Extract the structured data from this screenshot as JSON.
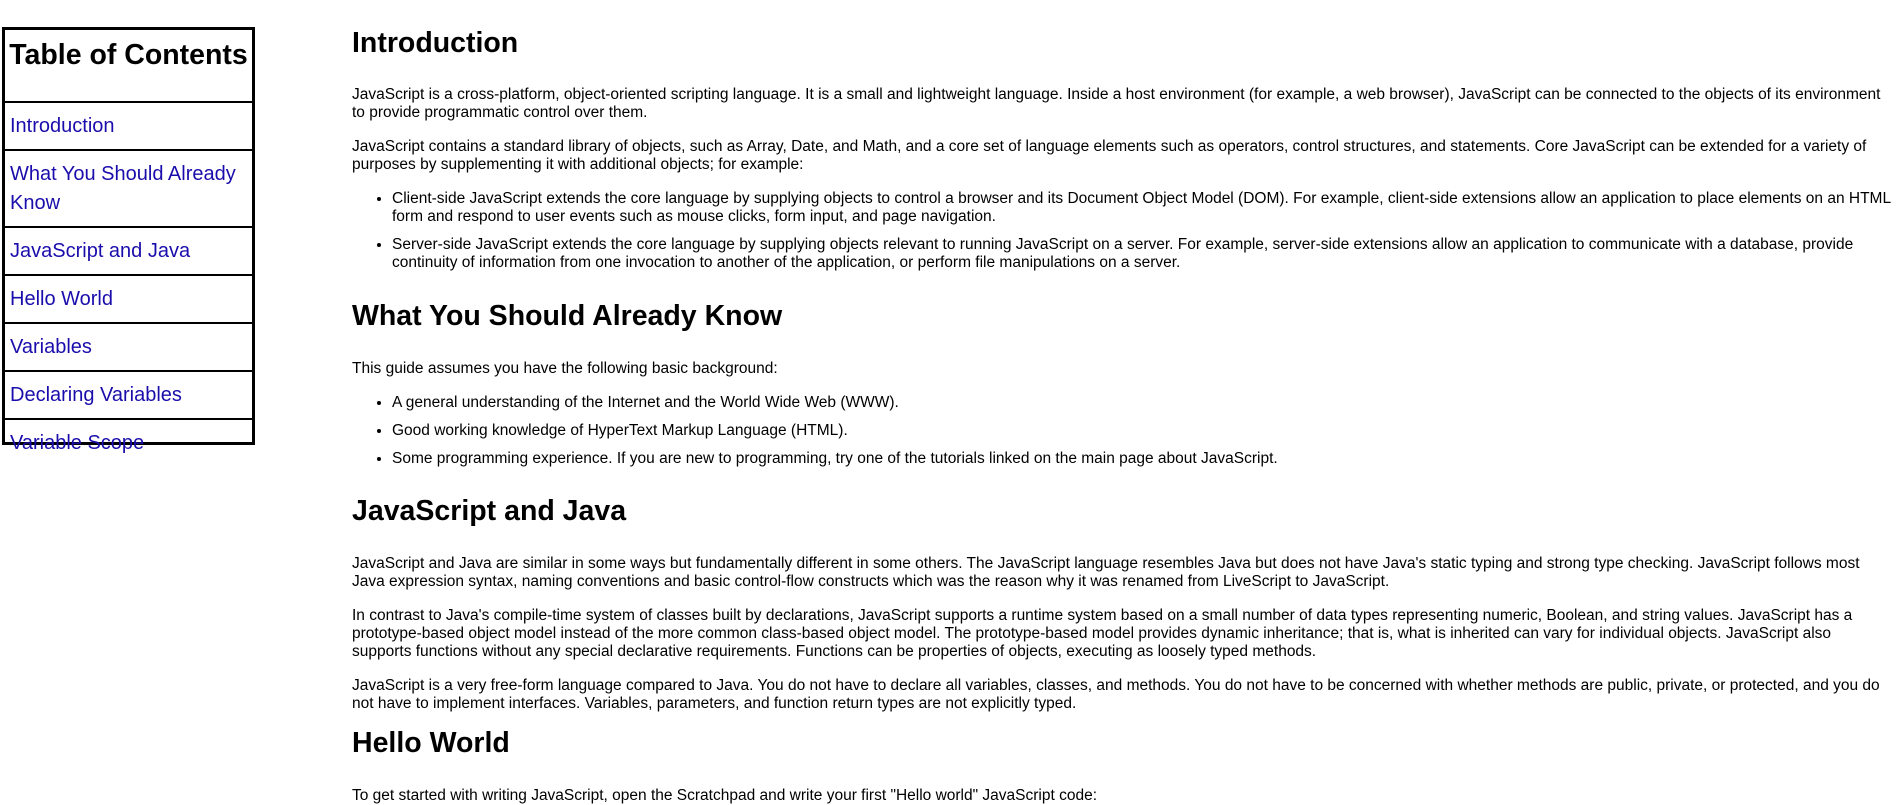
{
  "toc": {
    "title": "Table of Contents",
    "items": [
      {
        "label": "Introduction"
      },
      {
        "label": "What You Should Already Know"
      },
      {
        "label": "JavaScript and Java"
      },
      {
        "label": "Hello World"
      },
      {
        "label": "Variables"
      },
      {
        "label": "Declaring Variables"
      },
      {
        "label": "Variable Scope"
      }
    ]
  },
  "sections": {
    "introduction": {
      "title": "Introduction",
      "p1": "JavaScript is a cross-platform, object-oriented scripting language. It is a small and lightweight language. Inside a host environment (for example, a web browser), JavaScript can be connected to the objects of its environment to provide programmatic control over them.",
      "p2": "JavaScript contains a standard library of objects, such as Array, Date, and Math, and a core set of language elements such as operators, control structures, and statements. Core JavaScript can be extended for a variety of purposes by supplementing it with additional objects; for example:",
      "bullets": [
        "Client-side JavaScript extends the core language by supplying objects to control a browser and its Document Object Model (DOM). For example, client-side extensions allow an application to place elements on an HTML form and respond to user events such as mouse clicks, form input, and page navigation.",
        "Server-side JavaScript extends the core language by supplying objects relevant to running JavaScript on a server. For example, server-side extensions allow an application to communicate with a database, provide continuity of information from one invocation to another of the application, or perform file manipulations on a server."
      ]
    },
    "know": {
      "title": "What You Should Already Know",
      "p1": "This guide assumes you have the following basic background:",
      "bullets": [
        "A general understanding of the Internet and the World Wide Web (WWW).",
        "Good working knowledge of HyperText Markup Language (HTML).",
        "Some programming experience. If you are new to programming, try one of the tutorials linked on the main page about JavaScript."
      ]
    },
    "java": {
      "title": "JavaScript and Java",
      "p1": "JavaScript and Java are similar in some ways but fundamentally different in some others. The JavaScript language resembles Java but does not have Java's static typing and strong type checking. JavaScript follows most Java expression syntax, naming conventions and basic control-flow constructs which was the reason why it was renamed from LiveScript to JavaScript.",
      "p2": "In contrast to Java's compile-time system of classes built by declarations, JavaScript supports a runtime system based on a small number of data types representing numeric, Boolean, and string values. JavaScript has a prototype-based object model instead of the more common class-based object model. The prototype-based model provides dynamic inheritance; that is, what is inherited can vary for individual objects. JavaScript also supports functions without any special declarative requirements. Functions can be properties of objects, executing as loosely typed methods.",
      "p3": "JavaScript is a very free-form language compared to Java. You do not have to declare all variables, classes, and methods. You do not have to be concerned with whether methods are public, private, or protected, and you do not have to implement interfaces. Variables, parameters, and function return types are not explicitly typed."
    },
    "hello": {
      "title": "Hello World",
      "p1": "To get started with writing JavaScript, open the Scratchpad and write your first \"Hello world\" JavaScript code:"
    }
  }
}
